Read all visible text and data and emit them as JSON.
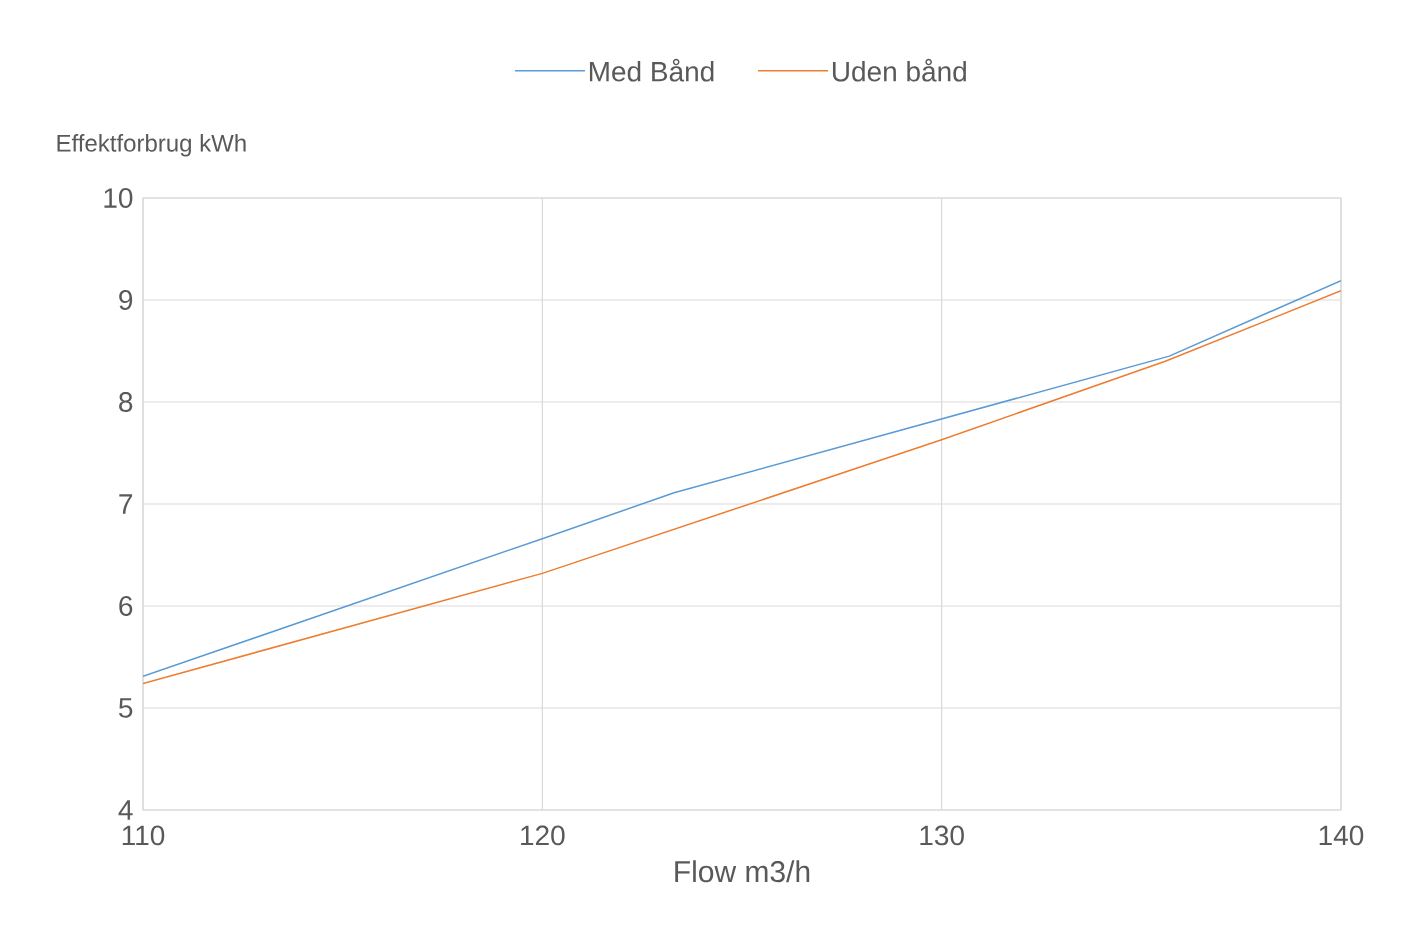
{
  "chart_data": {
    "type": "line",
    "xlabel": "Flow m3/h",
    "ylabel": "Effektforbrug kWh",
    "xlim": [
      110,
      140
    ],
    "xticks": [
      110,
      120,
      130,
      140
    ],
    "ylim": [
      4,
      10
    ],
    "yticks": [
      4,
      5,
      6,
      7,
      8,
      9,
      10
    ],
    "grid": true,
    "legend": "top",
    "marker": "none",
    "line_style": "solid",
    "series": [
      {
        "name": "Med Bånd",
        "color": "#5b9bd5",
        "x": [
          110,
          120,
          123.3,
          135.7,
          140
        ],
        "values": [
          5.31,
          6.66,
          7.11,
          8.45,
          9.19
        ]
      },
      {
        "name": "Uden bånd",
        "color": "#ed7d31",
        "x": [
          110,
          120,
          130,
          135.6,
          140
        ],
        "values": [
          5.24,
          6.32,
          7.63,
          8.4,
          9.09
        ]
      }
    ]
  }
}
